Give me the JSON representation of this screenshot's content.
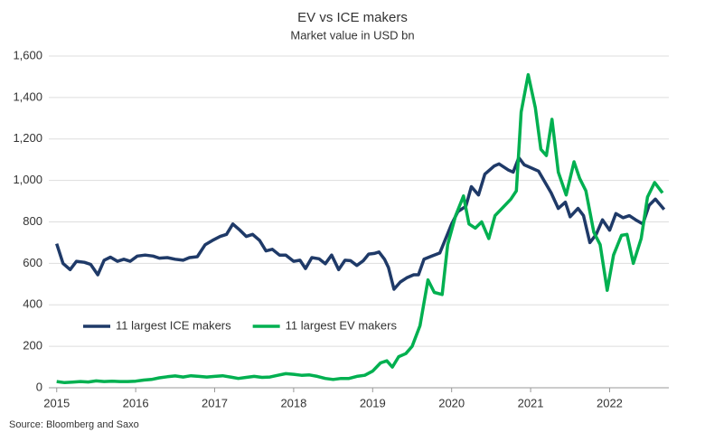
{
  "chart_data": {
    "type": "line",
    "title": "EV vs ICE makers",
    "subtitle": "Market value in USD bn",
    "source": "Source: Bloomberg and Saxo",
    "xlim": [
      2014.9,
      2022.75
    ],
    "xticks": [
      2015,
      2016,
      2017,
      2018,
      2019,
      2020,
      2021,
      2022
    ],
    "ylim": [
      0,
      1600
    ],
    "yticks": [
      0,
      200,
      400,
      600,
      800,
      {
        "value": 1000,
        "label": "1,000"
      },
      {
        "value": 1200,
        "label": "1,200"
      },
      {
        "value": 1400,
        "label": "1,400"
      },
      {
        "value": 1600,
        "label": "1,600"
      }
    ],
    "grid": true,
    "legend": "lower left",
    "series": [
      {
        "name": "11 largest ICE makers",
        "color": "#1f3a68",
        "x": [
          2015.0,
          2015.08,
          2015.17,
          2015.25,
          2015.35,
          2015.43,
          2015.52,
          2015.6,
          2015.68,
          2015.77,
          2015.85,
          2015.93,
          2016.02,
          2016.12,
          2016.22,
          2016.3,
          2016.4,
          2016.5,
          2016.6,
          2016.68,
          2016.78,
          2016.88,
          2016.97,
          2017.07,
          2017.15,
          2017.23,
          2017.32,
          2017.4,
          2017.48,
          2017.57,
          2017.65,
          2017.73,
          2017.82,
          2017.9,
          2018.0,
          2018.08,
          2018.15,
          2018.23,
          2018.32,
          2018.4,
          2018.48,
          2018.57,
          2018.65,
          2018.72,
          2018.8,
          2018.88,
          2018.95,
          2019.02,
          2019.08,
          2019.15,
          2019.2,
          2019.27,
          2019.35,
          2019.43,
          2019.52,
          2019.58,
          2019.65,
          2019.75,
          2019.85,
          2020.0,
          2020.08,
          2020.18,
          2020.25,
          2020.34,
          2020.42,
          2020.54,
          2020.6,
          2020.72,
          2020.78,
          2020.85,
          2020.92,
          2021.1,
          2021.26,
          2021.35,
          2021.44,
          2021.5,
          2021.6,
          2021.67,
          2021.75,
          2021.83,
          2021.91,
          2022.0,
          2022.08,
          2022.17,
          2022.25,
          2022.33,
          2022.42,
          2022.5,
          2022.58,
          2022.69
        ],
        "values": [
          695,
          600,
          570,
          610,
          605,
          595,
          545,
          615,
          630,
          610,
          620,
          610,
          635,
          640,
          635,
          625,
          628,
          620,
          615,
          628,
          632,
          690,
          710,
          730,
          740,
          790,
          760,
          730,
          740,
          710,
          660,
          668,
          640,
          640,
          610,
          615,
          575,
          628,
          622,
          598,
          640,
          570,
          615,
          613,
          590,
          612,
          645,
          648,
          655,
          620,
          580,
          475,
          510,
          530,
          545,
          545,
          620,
          635,
          650,
          790,
          850,
          875,
          970,
          930,
          1030,
          1070,
          1080,
          1050,
          1040,
          1110,
          1075,
          1045,
          940,
          865,
          895,
          825,
          865,
          830,
          700,
          740,
          810,
          760,
          840,
          820,
          830,
          810,
          790,
          880,
          910,
          860
        ]
      },
      {
        "name": "11 largest EV makers",
        "color": "#00b050",
        "x": [
          2015.0,
          2015.1,
          2015.2,
          2015.3,
          2015.4,
          2015.5,
          2015.6,
          2015.7,
          2015.8,
          2015.9,
          2016.0,
          2016.1,
          2016.2,
          2016.3,
          2016.4,
          2016.5,
          2016.6,
          2016.7,
          2016.8,
          2016.9,
          2017.0,
          2017.1,
          2017.2,
          2017.3,
          2017.4,
          2017.5,
          2017.6,
          2017.7,
          2017.8,
          2017.9,
          2018.0,
          2018.1,
          2018.2,
          2018.3,
          2018.4,
          2018.5,
          2018.6,
          2018.7,
          2018.8,
          2018.9,
          2019.0,
          2019.1,
          2019.18,
          2019.25,
          2019.33,
          2019.42,
          2019.5,
          2019.6,
          2019.7,
          2019.78,
          2019.88,
          2019.95,
          2020.05,
          2020.15,
          2020.22,
          2020.3,
          2020.38,
          2020.47,
          2020.55,
          2020.65,
          2020.75,
          2020.82,
          2020.88,
          2020.97,
          2021.06,
          2021.13,
          2021.2,
          2021.27,
          2021.35,
          2021.45,
          2021.55,
          2021.62,
          2021.7,
          2021.8,
          2021.88,
          2021.97,
          2022.05,
          2022.15,
          2022.22,
          2022.3,
          2022.4,
          2022.48,
          2022.57,
          2022.67
        ],
        "values": [
          30,
          25,
          27,
          30,
          28,
          33,
          30,
          32,
          30,
          30,
          32,
          37,
          40,
          48,
          53,
          57,
          52,
          58,
          55,
          52,
          55,
          58,
          52,
          45,
          50,
          55,
          50,
          52,
          60,
          68,
          65,
          60,
          62,
          55,
          45,
          40,
          45,
          45,
          55,
          60,
          80,
          120,
          130,
          100,
          150,
          165,
          200,
          300,
          520,
          460,
          450,
          690,
          830,
          925,
          790,
          770,
          800,
          720,
          830,
          870,
          910,
          950,
          1330,
          1510,
          1350,
          1150,
          1120,
          1295,
          1040,
          930,
          1090,
          1010,
          950,
          750,
          690,
          470,
          640,
          735,
          740,
          600,
          720,
          920,
          990,
          940
        ]
      }
    ]
  }
}
